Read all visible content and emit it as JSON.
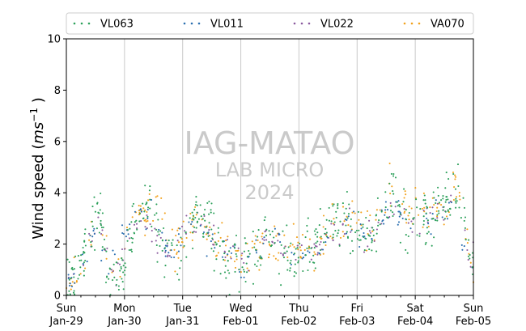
{
  "chart_data": {
    "type": "scatter",
    "ylabel": "Wind speed (ms⁻¹)",
    "ylabel_prefix": "Wind speed (",
    "ylabel_unit": "ms",
    "ylabel_exp": "−1",
    "ylabel_suffix": " )",
    "ylim": [
      0,
      10
    ],
    "yticks": [
      "0",
      "2",
      "4",
      "6",
      "8",
      "10"
    ],
    "xlim": [
      "2023-01-29",
      "2023-02-05"
    ],
    "x_ticks": [
      {
        "day": "Sun",
        "date": "Jan-29"
      },
      {
        "day": "Mon",
        "date": "Jan-30"
      },
      {
        "day": "Tue",
        "date": "Jan-31"
      },
      {
        "day": "Wed",
        "date": "Feb-01"
      },
      {
        "day": "Thu",
        "date": "Feb-02"
      },
      {
        "day": "Fri",
        "date": "Feb-03"
      },
      {
        "day": "Sat",
        "date": "Feb-04"
      },
      {
        "day": "Sun",
        "date": "Feb-05"
      }
    ],
    "grid": "vertical-at-day-ticks",
    "legend_position": "top",
    "watermark": {
      "line1": "IAG-MATAO",
      "line2": "LAB MICRO",
      "line3": "2024"
    },
    "series": [
      {
        "name": "VL063",
        "color": "#2ca05a",
        "profile": [
          [
            0,
            0.6
          ],
          [
            0.15,
            0.5
          ],
          [
            0.3,
            1.5
          ],
          [
            0.45,
            2.9
          ],
          [
            0.6,
            3.0
          ],
          [
            0.7,
            1.0
          ],
          [
            0.85,
            0.5
          ],
          [
            1.0,
            0.9
          ],
          [
            1.2,
            3.2
          ],
          [
            1.4,
            3.5
          ],
          [
            1.6,
            2.2
          ],
          [
            1.8,
            1.4
          ],
          [
            2.0,
            1.8
          ],
          [
            2.2,
            3.0
          ],
          [
            2.4,
            3.2
          ],
          [
            2.6,
            2.0
          ],
          [
            2.8,
            1.3
          ],
          [
            3.0,
            1.2
          ],
          [
            3.2,
            1.5
          ],
          [
            3.4,
            2.3
          ],
          [
            3.55,
            2.5
          ],
          [
            3.7,
            1.8
          ],
          [
            3.85,
            1.4
          ],
          [
            4.0,
            1.7
          ],
          [
            4.2,
            1.8
          ],
          [
            4.4,
            2.6
          ],
          [
            4.6,
            2.9
          ],
          [
            4.8,
            3.0
          ],
          [
            5.0,
            2.4
          ],
          [
            5.2,
            2.3
          ],
          [
            5.35,
            2.6
          ],
          [
            5.5,
            3.5
          ],
          [
            5.65,
            4.0
          ],
          [
            5.8,
            2.8
          ],
          [
            5.95,
            2.6
          ],
          [
            6.1,
            3.1
          ],
          [
            6.3,
            3.0
          ],
          [
            6.45,
            3.5
          ],
          [
            6.6,
            3.8
          ],
          [
            6.75,
            4.1
          ],
          [
            6.85,
            3.0
          ],
          [
            6.95,
            1.5
          ],
          [
            7.0,
            1.0
          ]
        ]
      },
      {
        "name": "VL011",
        "color": "#2b6fb0",
        "profile": [
          [
            0.05,
            0.5
          ],
          [
            0.3,
            1.2
          ],
          [
            0.5,
            2.9
          ],
          [
            0.7,
            0.9
          ],
          [
            1.2,
            3.2
          ],
          [
            1.5,
            3.2
          ],
          [
            1.8,
            1.5
          ],
          [
            2.2,
            2.9
          ],
          [
            2.6,
            1.9
          ],
          [
            3.0,
            1.2
          ],
          [
            3.3,
            2.0
          ],
          [
            3.6,
            2.3
          ],
          [
            3.9,
            1.5
          ],
          [
            4.3,
            1.6
          ],
          [
            4.6,
            2.8
          ],
          [
            4.9,
            2.9
          ],
          [
            5.3,
            2.2
          ],
          [
            5.6,
            3.6
          ],
          [
            5.9,
            2.7
          ],
          [
            6.3,
            2.9
          ],
          [
            6.6,
            3.5
          ],
          [
            6.9,
            1.5
          ]
        ]
      },
      {
        "name": "VL022",
        "color": "#8a5a9e",
        "profile": [
          [
            0.05,
            0.5
          ],
          [
            0.3,
            1.3
          ],
          [
            0.55,
            3.0
          ],
          [
            0.8,
            0.6
          ],
          [
            1.3,
            3.3
          ],
          [
            1.7,
            1.6
          ],
          [
            2.2,
            3.0
          ],
          [
            2.7,
            1.8
          ],
          [
            3.1,
            1.2
          ],
          [
            3.45,
            2.5
          ],
          [
            3.8,
            1.7
          ],
          [
            4.0,
            1.7
          ],
          [
            4.3,
            1.7
          ],
          [
            4.6,
            2.6
          ],
          [
            4.9,
            2.8
          ],
          [
            5.1,
            2.0
          ],
          [
            5.3,
            2.5
          ],
          [
            5.5,
            3.7
          ],
          [
            5.7,
            2.9
          ],
          [
            6.1,
            3.0
          ],
          [
            6.4,
            3.3
          ],
          [
            6.7,
            3.6
          ],
          [
            6.95,
            1.3
          ]
        ]
      },
      {
        "name": "VA070",
        "color": "#f2a21d",
        "profile": [
          [
            0.05,
            0.4
          ],
          [
            0.3,
            1.3
          ],
          [
            0.55,
            3.4
          ],
          [
            0.8,
            0.7
          ],
          [
            1.3,
            3.4
          ],
          [
            1.6,
            3.1
          ],
          [
            1.9,
            1.6
          ],
          [
            2.2,
            2.9
          ],
          [
            2.6,
            2.0
          ],
          [
            3.0,
            1.1
          ],
          [
            3.3,
            1.9
          ],
          [
            3.6,
            2.0
          ],
          [
            3.9,
            1.9
          ],
          [
            4.3,
            1.7
          ],
          [
            4.6,
            2.9
          ],
          [
            4.9,
            3.0
          ],
          [
            5.3,
            2.5
          ],
          [
            5.6,
            4.3
          ],
          [
            5.9,
            3.3
          ],
          [
            6.2,
            3.4
          ],
          [
            6.5,
            3.7
          ],
          [
            6.75,
            4.4
          ],
          [
            6.95,
            1.2
          ]
        ]
      }
    ]
  }
}
